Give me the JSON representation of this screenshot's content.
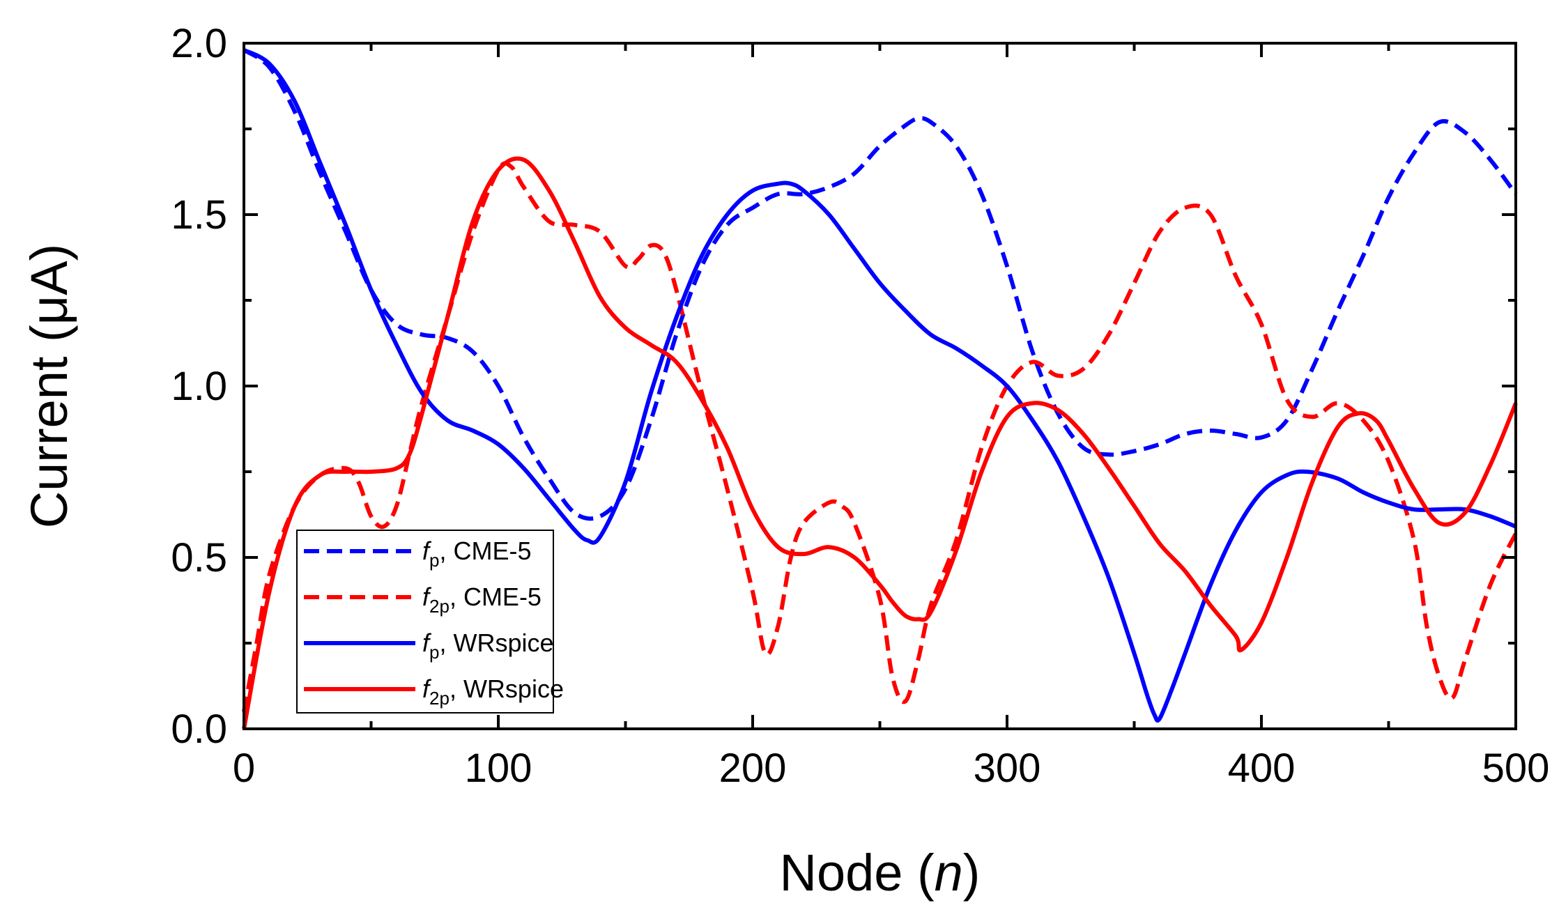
{
  "chart_data": {
    "type": "line",
    "xlabel": {
      "prefix": "Node (",
      "var": "n",
      "suffix": ")"
    },
    "ylabel": "Current (μA)",
    "xlim": [
      0,
      500
    ],
    "ylim": [
      0,
      2
    ],
    "xticks": [
      0,
      100,
      200,
      300,
      400,
      500
    ],
    "xtick_labels": [
      "0",
      "100",
      "200",
      "300",
      "400",
      "500"
    ],
    "yticks": [
      0,
      0.5,
      1,
      1.5,
      2
    ],
    "ytick_labels": [
      "0.0",
      "0.5",
      "1.0",
      "1.5",
      "2.0"
    ],
    "legend_position": "bottom-left",
    "series": [
      {
        "name": "f_p, CME-5",
        "label_f": "f",
        "label_sub": "p",
        "label_rest": ", CME-5",
        "color": "#0000ff",
        "dash": true,
        "x": [
          0,
          10,
          20,
          30,
          40,
          50,
          60,
          70,
          80,
          90,
          100,
          110,
          120,
          130,
          140,
          150,
          160,
          170,
          180,
          190,
          200,
          210,
          220,
          230,
          240,
          250,
          260,
          265,
          270,
          280,
          290,
          300,
          310,
          320,
          330,
          340,
          350,
          360,
          370,
          380,
          390,
          400,
          410,
          420,
          430,
          440,
          450,
          460,
          470,
          480,
          490,
          500
        ],
        "y": [
          1.98,
          1.93,
          1.8,
          1.62,
          1.45,
          1.28,
          1.18,
          1.15,
          1.14,
          1.1,
          1.0,
          0.85,
          0.73,
          0.63,
          0.62,
          0.7,
          0.9,
          1.15,
          1.35,
          1.47,
          1.52,
          1.56,
          1.56,
          1.58,
          1.62,
          1.7,
          1.76,
          1.78,
          1.77,
          1.7,
          1.56,
          1.35,
          1.1,
          0.92,
          0.82,
          0.8,
          0.81,
          0.83,
          0.86,
          0.87,
          0.86,
          0.85,
          0.9,
          1.05,
          1.22,
          1.38,
          1.55,
          1.68,
          1.77,
          1.74,
          1.66,
          1.56
        ]
      },
      {
        "name": "f_2p, CME-5",
        "label_f": "f",
        "label_sub": "2p",
        "label_rest": ", CME-5",
        "color": "#ff0000",
        "dash": true,
        "x": [
          0,
          5,
          10,
          20,
          30,
          40,
          45,
          50,
          55,
          60,
          65,
          70,
          80,
          90,
          100,
          105,
          110,
          120,
          130,
          140,
          150,
          155,
          160,
          165,
          170,
          180,
          190,
          200,
          205,
          210,
          215,
          220,
          230,
          235,
          240,
          250,
          255,
          260,
          265,
          270,
          280,
          290,
          300,
          310,
          320,
          330,
          340,
          350,
          360,
          370,
          380,
          390,
          400,
          410,
          420,
          430,
          440,
          450,
          460,
          465,
          470,
          475,
          480,
          490,
          500
        ],
        "y": [
          0.05,
          0.25,
          0.45,
          0.65,
          0.74,
          0.76,
          0.72,
          0.62,
          0.59,
          0.65,
          0.8,
          0.95,
          1.2,
          1.45,
          1.63,
          1.64,
          1.58,
          1.48,
          1.47,
          1.45,
          1.35,
          1.37,
          1.41,
          1.39,
          1.28,
          0.98,
          0.7,
          0.4,
          0.22,
          0.3,
          0.5,
          0.6,
          0.66,
          0.65,
          0.6,
          0.38,
          0.15,
          0.08,
          0.2,
          0.36,
          0.55,
          0.82,
          1.0,
          1.07,
          1.03,
          1.05,
          1.15,
          1.3,
          1.45,
          1.52,
          1.5,
          1.32,
          1.18,
          0.96,
          0.91,
          0.95,
          0.9,
          0.78,
          0.55,
          0.3,
          0.15,
          0.09,
          0.2,
          0.42,
          0.57
        ]
      },
      {
        "name": "f_p, WRspice",
        "label_f": "f",
        "label_sub": "p",
        "label_rest": ", WRspice",
        "color": "#0000ff",
        "dash": false,
        "x": [
          0,
          10,
          20,
          30,
          40,
          50,
          60,
          70,
          80,
          90,
          100,
          110,
          120,
          130,
          135,
          140,
          150,
          160,
          170,
          180,
          190,
          200,
          210,
          215,
          220,
          230,
          240,
          250,
          260,
          270,
          280,
          290,
          300,
          310,
          320,
          330,
          340,
          350,
          355,
          358,
          360,
          365,
          370,
          380,
          390,
          400,
          410,
          418,
          430,
          440,
          450,
          460,
          470,
          480,
          490,
          500
        ],
        "y": [
          1.98,
          1.94,
          1.83,
          1.65,
          1.47,
          1.28,
          1.12,
          0.98,
          0.9,
          0.87,
          0.83,
          0.76,
          0.67,
          0.58,
          0.55,
          0.56,
          0.72,
          0.98,
          1.2,
          1.38,
          1.5,
          1.57,
          1.59,
          1.59,
          1.57,
          1.5,
          1.4,
          1.3,
          1.22,
          1.15,
          1.11,
          1.06,
          1.0,
          0.9,
          0.78,
          0.62,
          0.44,
          0.22,
          0.1,
          0.04,
          0.03,
          0.12,
          0.22,
          0.42,
          0.58,
          0.69,
          0.74,
          0.75,
          0.73,
          0.69,
          0.66,
          0.64,
          0.64,
          0.64,
          0.62,
          0.59
        ]
      },
      {
        "name": "f_2p, WRspice",
        "label_f": "f",
        "label_sub": "2p",
        "label_rest": ", WRspice",
        "color": "#ff0000",
        "dash": false,
        "x": [
          0,
          10,
          20,
          30,
          40,
          50,
          60,
          65,
          70,
          80,
          90,
          100,
          110,
          120,
          130,
          140,
          150,
          160,
          170,
          180,
          190,
          200,
          210,
          220,
          230,
          240,
          250,
          255,
          260,
          265,
          270,
          280,
          290,
          300,
          310,
          320,
          330,
          340,
          350,
          360,
          370,
          380,
          390,
          392,
          400,
          410,
          420,
          430,
          438,
          445,
          450,
          460,
          470,
          480,
          490,
          500
        ],
        "y": [
          0.0,
          0.4,
          0.65,
          0.74,
          0.75,
          0.75,
          0.76,
          0.8,
          0.92,
          1.2,
          1.48,
          1.63,
          1.66,
          1.57,
          1.42,
          1.26,
          1.17,
          1.12,
          1.07,
          0.96,
          0.82,
          0.64,
          0.53,
          0.51,
          0.53,
          0.5,
          0.42,
          0.37,
          0.33,
          0.32,
          0.34,
          0.52,
          0.75,
          0.91,
          0.95,
          0.93,
          0.86,
          0.76,
          0.65,
          0.54,
          0.46,
          0.36,
          0.27,
          0.23,
          0.31,
          0.5,
          0.72,
          0.88,
          0.92,
          0.9,
          0.84,
          0.7,
          0.6,
          0.63,
          0.77,
          0.95
        ]
      }
    ]
  }
}
